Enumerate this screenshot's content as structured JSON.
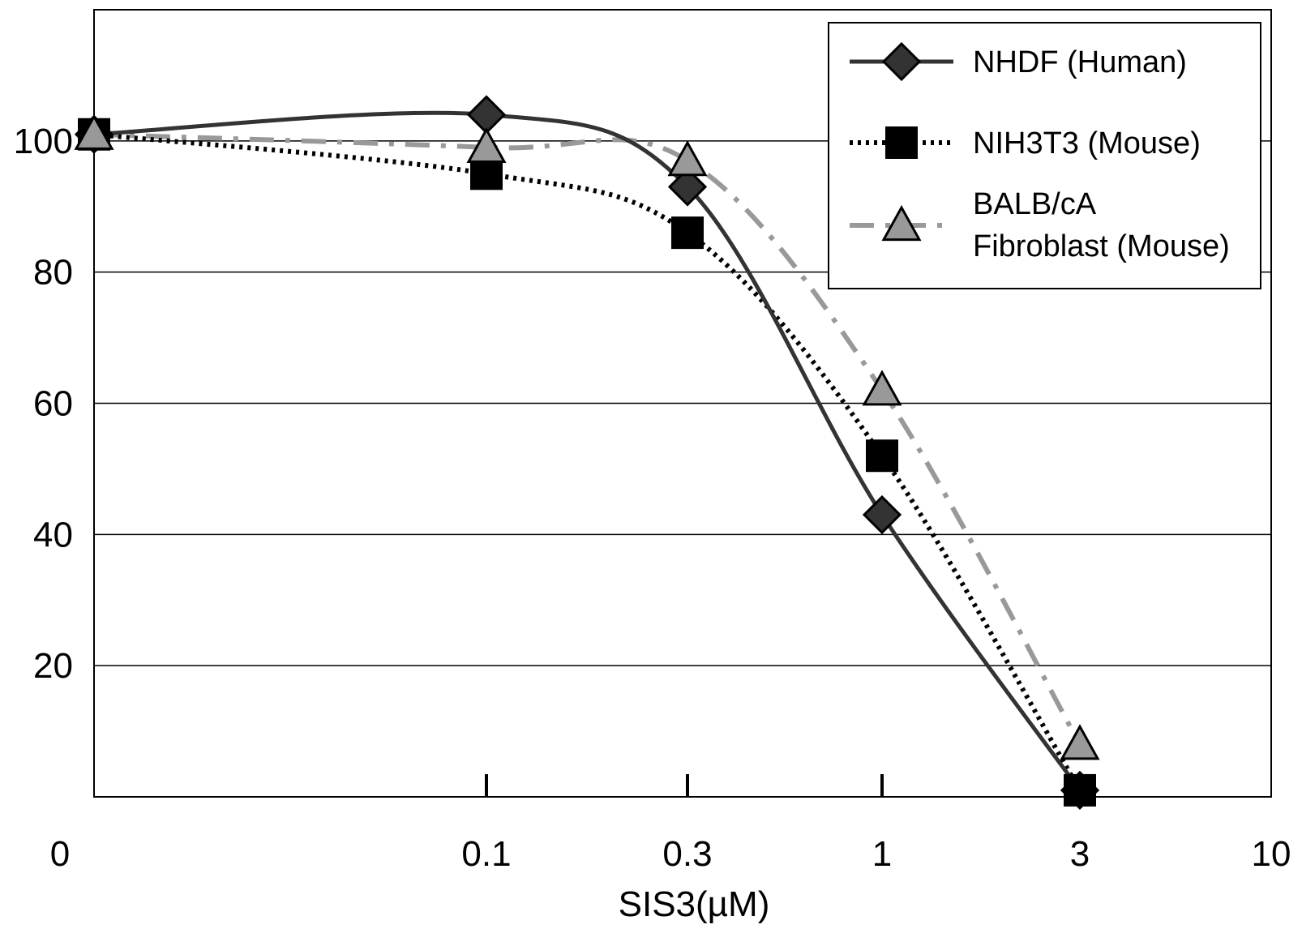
{
  "chart_data": {
    "type": "line",
    "title": "",
    "xlabel": "SIS3(µM)",
    "ylabel": "",
    "x_scale": "log-like (0 at left edge)",
    "x_ticks": [
      "0",
      "0.1",
      "0.3",
      "1",
      "3",
      "10"
    ],
    "y_ticks": [
      "20",
      "40",
      "60",
      "80",
      "100"
    ],
    "ylim": [
      0,
      120
    ],
    "grid": "horizontal",
    "legend_position": "top-right",
    "series": [
      {
        "name": "NHDF (Human)",
        "color": "#333333",
        "line_style": "solid",
        "marker": "diamond",
        "points": [
          {
            "x": "0",
            "y": 101
          },
          {
            "x": "0.1",
            "y": 104
          },
          {
            "x": "0.3",
            "y": 93
          },
          {
            "x": "1",
            "y": 43
          },
          {
            "x": "3",
            "y": 1
          }
        ]
      },
      {
        "name": "NIH3T3 (Mouse)",
        "color": "#000000",
        "line_style": "dotted",
        "marker": "square",
        "points": [
          {
            "x": "0",
            "y": 101
          },
          {
            "x": "0.1",
            "y": 95
          },
          {
            "x": "0.3",
            "y": 86
          },
          {
            "x": "1",
            "y": 52
          },
          {
            "x": "3",
            "y": 1
          }
        ]
      },
      {
        "name": "BALB/cA Fibroblast (Mouse)",
        "legend_lines": [
          "BALB/cA",
          "Fibroblast (Mouse)"
        ],
        "color": "#999999",
        "line_style": "dash-dot",
        "marker": "triangle",
        "points": [
          {
            "x": "0",
            "y": 101
          },
          {
            "x": "0.1",
            "y": 99
          },
          {
            "x": "0.3",
            "y": 97
          },
          {
            "x": "1",
            "y": 62
          },
          {
            "x": "3",
            "y": 8
          }
        ]
      }
    ]
  }
}
